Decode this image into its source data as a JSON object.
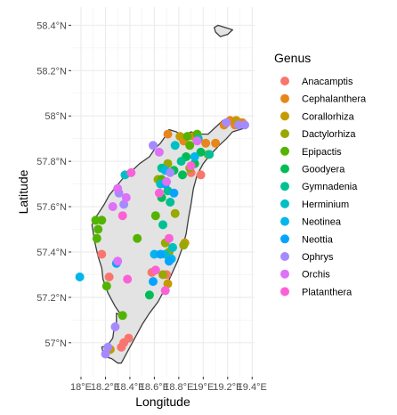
{
  "chart_data": {
    "type": "scatter",
    "xlabel": "Longitude",
    "ylabel": "Latitude",
    "xlim": [
      17.92,
      19.42
    ],
    "ylim": [
      56.85,
      58.48
    ],
    "x_ticks": [
      {
        "value": 18.0,
        "label": "18°E"
      },
      {
        "value": 18.2,
        "label": "18.2°E"
      },
      {
        "value": 18.4,
        "label": "18.4°E"
      },
      {
        "value": 18.6,
        "label": "18.6°E"
      },
      {
        "value": 18.8,
        "label": "18.8°E"
      },
      {
        "value": 19.0,
        "label": "19°E"
      },
      {
        "value": 19.2,
        "label": "19.2°E"
      },
      {
        "value": 19.4,
        "label": "19.4°E"
      }
    ],
    "y_ticks": [
      {
        "value": 57.0,
        "label": "57°N"
      },
      {
        "value": 57.2,
        "label": "57.2°N"
      },
      {
        "value": 57.4,
        "label": "57.4°N"
      },
      {
        "value": 57.6,
        "label": "57.6°N"
      },
      {
        "value": 57.8,
        "label": "57.8°N"
      },
      {
        "value": 58.0,
        "label": "58°N"
      },
      {
        "value": 58.2,
        "label": "58.2°N"
      },
      {
        "value": 58.4,
        "label": "58.4°N"
      }
    ],
    "grid": true,
    "legend": {
      "title": "Genus",
      "position": "right"
    },
    "island_outline": [
      [
        18.33,
        56.91
      ],
      [
        18.3,
        56.91
      ],
      [
        18.25,
        56.93
      ],
      [
        18.19,
        56.94
      ],
      [
        18.17,
        56.98
      ],
      [
        18.22,
        56.99
      ],
      [
        18.26,
        57.02
      ],
      [
        18.27,
        57.06
      ],
      [
        18.29,
        57.09
      ],
      [
        18.29,
        57.13
      ],
      [
        18.33,
        57.12
      ],
      [
        18.28,
        57.16
      ],
      [
        18.22,
        57.22
      ],
      [
        18.18,
        57.28
      ],
      [
        18.17,
        57.33
      ],
      [
        18.14,
        57.38
      ],
      [
        18.11,
        57.45
      ],
      [
        18.09,
        57.52
      ],
      [
        18.13,
        57.56
      ],
      [
        18.19,
        57.61
      ],
      [
        18.23,
        57.65
      ],
      [
        18.29,
        57.69
      ],
      [
        18.35,
        57.73
      ],
      [
        18.4,
        57.75
      ],
      [
        18.48,
        57.79
      ],
      [
        18.56,
        57.82
      ],
      [
        18.61,
        57.86
      ],
      [
        18.65,
        57.88
      ],
      [
        18.69,
        57.91
      ],
      [
        18.72,
        57.94
      ],
      [
        18.78,
        57.93
      ],
      [
        18.84,
        57.91
      ],
      [
        18.9,
        57.93
      ],
      [
        18.96,
        57.92
      ],
      [
        19.04,
        57.92
      ],
      [
        19.1,
        57.95
      ],
      [
        19.16,
        57.98
      ],
      [
        19.22,
        57.99
      ],
      [
        19.28,
        57.99
      ],
      [
        19.34,
        57.98
      ],
      [
        19.36,
        57.95
      ],
      [
        19.3,
        57.94
      ],
      [
        19.24,
        57.93
      ],
      [
        19.19,
        57.9
      ],
      [
        19.13,
        57.87
      ],
      [
        19.06,
        57.83
      ],
      [
        19.0,
        57.79
      ],
      [
        18.95,
        57.74
      ],
      [
        18.92,
        57.68
      ],
      [
        18.9,
        57.61
      ],
      [
        18.88,
        57.55
      ],
      [
        18.86,
        57.48
      ],
      [
        18.83,
        57.42
      ],
      [
        18.79,
        57.36
      ],
      [
        18.74,
        57.3
      ],
      [
        18.69,
        57.24
      ],
      [
        18.63,
        57.18
      ],
      [
        18.56,
        57.13
      ],
      [
        18.5,
        57.08
      ],
      [
        18.45,
        57.03
      ],
      [
        18.4,
        56.98
      ],
      [
        18.36,
        56.94
      ]
    ],
    "faro_outline": [
      [
        19.09,
        58.39
      ],
      [
        19.12,
        58.4
      ],
      [
        19.18,
        58.39
      ],
      [
        19.24,
        58.38
      ],
      [
        19.2,
        58.36
      ],
      [
        19.14,
        58.35
      ],
      [
        19.1,
        58.37
      ]
    ],
    "series": [
      {
        "name": "Anacamptis",
        "color": "#F8766D",
        "points": [
          [
            18.33,
            56.98
          ],
          [
            18.35,
            57.0
          ],
          [
            18.17,
            57.39
          ],
          [
            18.23,
            57.29
          ],
          [
            18.58,
            57.31
          ],
          [
            18.7,
            57.3
          ],
          [
            18.9,
            57.75
          ],
          [
            18.98,
            57.74
          ],
          [
            18.39,
            57.02
          ]
        ]
      },
      {
        "name": "Cephalanthera",
        "color": "#E7861B",
        "points": [
          [
            18.71,
            57.92
          ],
          [
            18.92,
            57.91
          ],
          [
            19.1,
            57.88
          ],
          [
            19.17,
            57.96
          ],
          [
            19.22,
            57.98
          ],
          [
            19.26,
            57.96
          ],
          [
            19.32,
            57.97
          ],
          [
            19.02,
            57.88
          ],
          [
            18.84,
            57.89
          ]
        ]
      },
      {
        "name": "Corallorhiza",
        "color": "#C49A00",
        "points": [
          [
            18.24,
            56.97
          ],
          [
            18.81,
            57.91
          ],
          [
            19.27,
            57.98
          ],
          [
            18.85,
            57.44
          ],
          [
            18.71,
            57.26
          ]
        ]
      },
      {
        "name": "Dactylorhiza",
        "color": "#99A800",
        "points": [
          [
            18.63,
            57.72
          ],
          [
            18.71,
            57.79
          ],
          [
            18.69,
            57.44
          ],
          [
            18.67,
            57.3
          ],
          [
            18.72,
            57.4
          ],
          [
            18.84,
            57.43
          ],
          [
            18.77,
            57.57
          ],
          [
            18.89,
            57.77
          ],
          [
            19.04,
            57.83
          ]
        ]
      },
      {
        "name": "Epipactis",
        "color": "#53B400",
        "points": [
          [
            18.12,
            57.54
          ],
          [
            18.14,
            57.5
          ],
          [
            18.17,
            57.54
          ],
          [
            18.13,
            57.46
          ],
          [
            18.21,
            57.25
          ],
          [
            18.34,
            57.12
          ],
          [
            18.46,
            57.46
          ],
          [
            18.61,
            57.56
          ],
          [
            18.66,
            57.72
          ],
          [
            18.87,
            57.91
          ],
          [
            18.89,
            57.87
          ],
          [
            18.95,
            57.92
          ]
        ]
      },
      {
        "name": "Goodyera",
        "color": "#00BC56",
        "points": [
          [
            18.56,
            57.21
          ],
          [
            18.66,
            57.64
          ],
          [
            18.76,
            57.76
          ],
          [
            18.83,
            57.74
          ],
          [
            18.93,
            57.79
          ],
          [
            18.86,
            57.82
          ],
          [
            18.98,
            57.84
          ]
        ]
      },
      {
        "name": "Gymnadenia",
        "color": "#00C094",
        "points": [
          [
            18.71,
            57.67
          ],
          [
            18.82,
            57.8
          ],
          [
            18.96,
            57.9
          ],
          [
            19.05,
            57.83
          ],
          [
            18.67,
            57.52
          ],
          [
            18.66,
            57.77
          ],
          [
            18.73,
            57.62
          ]
        ]
      },
      {
        "name": "Herminium",
        "color": "#00BFC4",
        "points": [
          [
            18.36,
            57.74
          ],
          [
            18.69,
            57.39
          ],
          [
            18.65,
            57.7
          ],
          [
            18.75,
            57.42
          ],
          [
            18.77,
            57.87
          ]
        ]
      },
      {
        "name": "Neotinea",
        "color": "#00B6EB",
        "points": [
          [
            17.99,
            57.29
          ],
          [
            18.6,
            57.39
          ],
          [
            18.74,
            57.37
          ],
          [
            18.69,
            57.76
          ],
          [
            18.93,
            57.82
          ]
        ]
      },
      {
        "name": "Neottia",
        "color": "#06A4FF",
        "points": [
          [
            18.59,
            57.27
          ],
          [
            18.65,
            57.39
          ],
          [
            18.72,
            57.36
          ],
          [
            18.29,
            57.35
          ],
          [
            18.69,
            57.7
          ],
          [
            18.76,
            57.66
          ]
        ]
      },
      {
        "name": "Ophrys",
        "color": "#A58AFF",
        "points": [
          [
            18.2,
            56.95
          ],
          [
            18.22,
            56.98
          ],
          [
            18.28,
            57.07
          ],
          [
            18.31,
            57.66
          ],
          [
            18.35,
            57.61
          ],
          [
            18.59,
            57.87
          ],
          [
            18.73,
            57.75
          ],
          [
            19.19,
            57.97
          ],
          [
            19.29,
            57.96
          ],
          [
            19.34,
            57.96
          ]
        ]
      },
      {
        "name": "Orchis",
        "color": "#DF70F8",
        "points": [
          [
            18.26,
            57.6
          ],
          [
            18.3,
            57.68
          ],
          [
            18.37,
            57.64
          ],
          [
            18.64,
            57.84
          ],
          [
            18.95,
            57.89
          ],
          [
            18.3,
            57.36
          ],
          [
            18.7,
            57.71
          ]
        ]
      },
      {
        "name": "Platanthera",
        "color": "#FB61D7",
        "points": [
          [
            18.34,
            57.56
          ],
          [
            18.41,
            57.75
          ],
          [
            18.61,
            57.32
          ],
          [
            18.69,
            57.23
          ],
          [
            18.64,
            57.66
          ],
          [
            18.38,
            57.28
          ],
          [
            18.9,
            57.78
          ],
          [
            18.72,
            57.46
          ]
        ]
      }
    ]
  }
}
